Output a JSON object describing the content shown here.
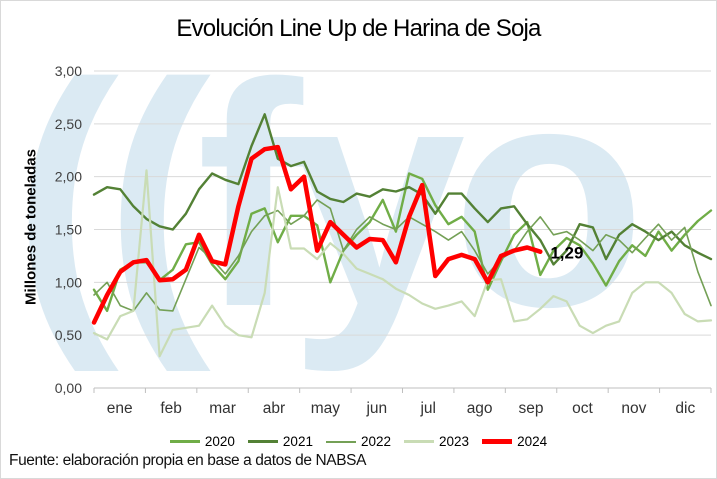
{
  "title": "Evolución Line Up de Harina de Soja",
  "footer": "Fuente: elaboración propia en base a datos de NABSA",
  "watermark": "((fyo",
  "annotation_label": "1,29",
  "y_axis": {
    "title": "Millones de toneladas",
    "tick_labels": [
      "0,00",
      "0,50",
      "1,00",
      "1,50",
      "2,00",
      "2,50",
      "3,00"
    ]
  },
  "x_axis": {
    "months": [
      "ene",
      "feb",
      "mar",
      "abr",
      "may",
      "jun",
      "jul",
      "ago",
      "sep",
      "oct",
      "nov",
      "dic"
    ]
  },
  "legend": [
    {
      "label": "2020",
      "color": "#70ad47",
      "thickness": 3
    },
    {
      "label": "2021",
      "color": "#538135",
      "thickness": 3
    },
    {
      "label": "2022",
      "color": "#74a056",
      "thickness": 2
    },
    {
      "label": "2023",
      "color": "#c9dcb5",
      "thickness": 3
    },
    {
      "label": "2024",
      "color": "#ff0000",
      "thickness": 5
    }
  ],
  "colors": {
    "grid": "#d9d9d9",
    "axis": "#bfbfbf",
    "tick_text": "#404040",
    "watermark": "#dbeaf3"
  },
  "chart_data": {
    "type": "line",
    "title": "Evolución Line Up de Harina de Soja",
    "xlabel": "",
    "ylabel": "Millones de toneladas",
    "ylim": [
      0,
      3
    ],
    "grid": "horizontal",
    "legend_position": "bottom",
    "x_categories": [
      "ene",
      "feb",
      "mar",
      "abr",
      "may",
      "jun",
      "jul",
      "ago",
      "sep",
      "oct",
      "nov",
      "dic"
    ],
    "points_per_month": 4,
    "x_points_per_year": 48,
    "unit": "millones de toneladas (weekly line-up, values estimated from gridlines)",
    "series": [
      {
        "name": "2020",
        "color": "#70ad47",
        "width": 2.4,
        "values": [
          0.93,
          0.73,
          1.12,
          1.19,
          1.19,
          1.02,
          1.12,
          1.36,
          1.38,
          1.17,
          1.03,
          1.2,
          1.65,
          1.7,
          1.38,
          1.63,
          1.63,
          1.54,
          1.0,
          1.3,
          1.45,
          1.57,
          1.78,
          1.48,
          2.03,
          1.98,
          1.73,
          1.55,
          1.62,
          1.48,
          0.93,
          1.2,
          1.45,
          1.57,
          1.07,
          1.3,
          1.42,
          1.35,
          1.18,
          0.97,
          1.2,
          1.35,
          1.25,
          1.48,
          1.3,
          1.45,
          1.58,
          1.68
        ]
      },
      {
        "name": "2021",
        "color": "#538135",
        "width": 2.4,
        "values": [
          1.83,
          1.9,
          1.88,
          1.72,
          1.6,
          1.53,
          1.5,
          1.65,
          1.88,
          2.03,
          1.97,
          1.93,
          2.29,
          2.59,
          2.17,
          2.1,
          2.14,
          1.86,
          1.79,
          1.76,
          1.84,
          1.81,
          1.88,
          1.86,
          1.9,
          1.83,
          1.65,
          1.84,
          1.84,
          1.7,
          1.57,
          1.7,
          1.72,
          1.55,
          1.4,
          1.17,
          1.3,
          1.55,
          1.52,
          1.22,
          1.45,
          1.55,
          1.48,
          1.4,
          1.48,
          1.35,
          1.28,
          1.22
        ]
      },
      {
        "name": "2022",
        "color": "#74a056",
        "width": 1.6,
        "values": [
          0.88,
          1.0,
          0.78,
          0.73,
          0.9,
          0.74,
          0.73,
          1.03,
          1.33,
          1.22,
          1.08,
          1.25,
          1.48,
          1.63,
          1.68,
          1.55,
          1.63,
          1.78,
          1.7,
          1.3,
          1.5,
          1.62,
          1.55,
          1.5,
          1.62,
          1.55,
          1.48,
          1.4,
          1.48,
          1.3,
          1.08,
          1.22,
          1.3,
          1.48,
          1.62,
          1.45,
          1.48,
          1.4,
          1.3,
          1.45,
          1.4,
          1.28,
          1.42,
          1.55,
          1.4,
          1.52,
          1.1,
          0.78
        ]
      },
      {
        "name": "2023",
        "color": "#c9dcb5",
        "width": 2.2,
        "values": [
          0.52,
          0.46,
          0.68,
          0.73,
          2.06,
          0.3,
          0.55,
          0.57,
          0.59,
          0.78,
          0.59,
          0.5,
          0.48,
          0.9,
          1.9,
          1.32,
          1.32,
          1.22,
          1.37,
          1.27,
          1.13,
          1.08,
          1.03,
          0.94,
          0.88,
          0.8,
          0.75,
          0.78,
          0.82,
          0.68,
          1.02,
          1.03,
          0.63,
          0.65,
          0.75,
          0.87,
          0.82,
          0.59,
          0.52,
          0.59,
          0.63,
          0.9,
          1.0,
          1.0,
          0.9,
          0.7,
          0.63,
          0.64
        ]
      },
      {
        "name": "2024",
        "color": "#ff0000",
        "width": 4.5,
        "values": [
          0.62,
          0.88,
          1.1,
          1.19,
          1.21,
          1.02,
          1.03,
          1.12,
          1.45,
          1.2,
          1.17,
          1.72,
          2.17,
          2.26,
          2.28,
          1.88,
          2.0,
          1.3,
          1.57,
          1.45,
          1.33,
          1.41,
          1.4,
          1.19,
          1.62,
          1.92,
          1.06,
          1.22,
          1.26,
          1.22,
          1.0,
          1.25,
          1.3,
          1.33,
          1.29
        ]
      }
    ],
    "annotation": {
      "series": "2024",
      "label": "1,29",
      "value": 1.29
    }
  }
}
